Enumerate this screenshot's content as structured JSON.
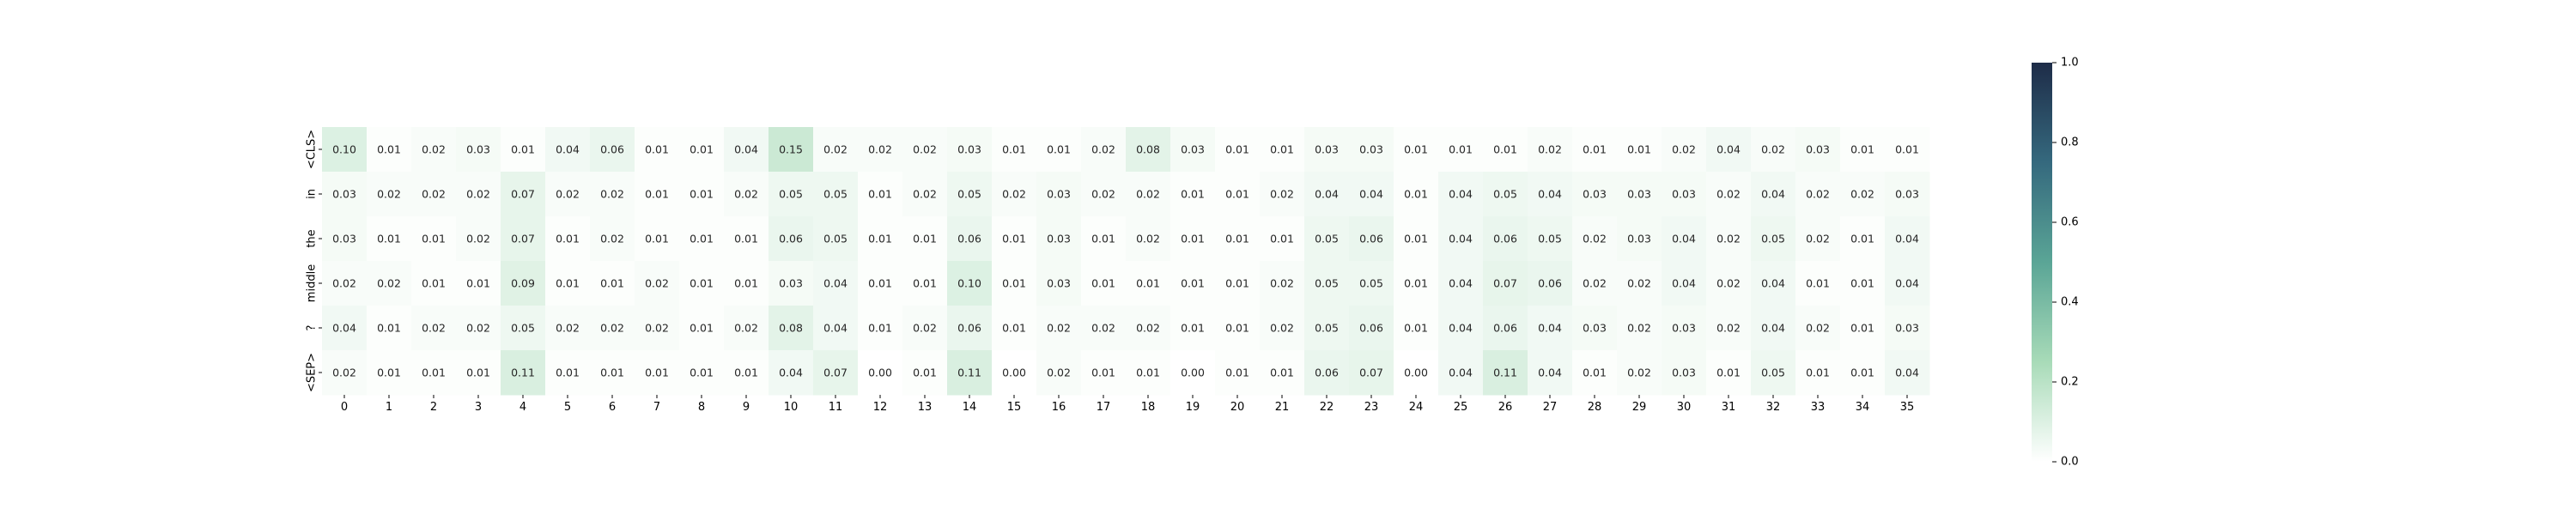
{
  "chart_data": {
    "type": "heatmap",
    "title": "",
    "xlabel": "",
    "ylabel": "",
    "x_ticks": [
      "0",
      "1",
      "2",
      "3",
      "4",
      "5",
      "6",
      "7",
      "8",
      "9",
      "10",
      "11",
      "12",
      "13",
      "14",
      "15",
      "16",
      "17",
      "18",
      "19",
      "20",
      "21",
      "22",
      "23",
      "24",
      "25",
      "26",
      "27",
      "28",
      "29",
      "30",
      "31",
      "32",
      "33",
      "34",
      "35"
    ],
    "y_ticks": [
      "<CLS>",
      "in",
      "the",
      "middle",
      "?",
      "<SEP>"
    ],
    "values": [
      [
        0.1,
        0.01,
        0.02,
        0.03,
        0.01,
        0.04,
        0.06,
        0.01,
        0.01,
        0.04,
        0.15,
        0.02,
        0.02,
        0.02,
        0.03,
        0.01,
        0.01,
        0.02,
        0.08,
        0.03,
        0.01,
        0.01,
        0.03,
        0.03,
        0.01,
        0.01,
        0.01,
        0.02,
        0.01,
        0.01,
        0.02,
        0.04,
        0.02,
        0.03,
        0.01,
        0.01
      ],
      [
        0.03,
        0.02,
        0.02,
        0.02,
        0.07,
        0.02,
        0.02,
        0.01,
        0.01,
        0.02,
        0.05,
        0.05,
        0.01,
        0.02,
        0.05,
        0.02,
        0.03,
        0.02,
        0.02,
        0.01,
        0.01,
        0.02,
        0.04,
        0.04,
        0.01,
        0.04,
        0.05,
        0.04,
        0.03,
        0.03,
        0.03,
        0.02,
        0.04,
        0.02,
        0.02,
        0.03
      ],
      [
        0.03,
        0.01,
        0.01,
        0.02,
        0.07,
        0.01,
        0.02,
        0.01,
        0.01,
        0.01,
        0.06,
        0.05,
        0.01,
        0.01,
        0.06,
        0.01,
        0.03,
        0.01,
        0.02,
        0.01,
        0.01,
        0.01,
        0.05,
        0.06,
        0.01,
        0.04,
        0.06,
        0.05,
        0.02,
        0.03,
        0.04,
        0.02,
        0.05,
        0.02,
        0.01,
        0.04
      ],
      [
        0.02,
        0.02,
        0.01,
        0.01,
        0.09,
        0.01,
        0.01,
        0.02,
        0.01,
        0.01,
        0.03,
        0.04,
        0.01,
        0.01,
        0.1,
        0.01,
        0.03,
        0.01,
        0.01,
        0.01,
        0.01,
        0.02,
        0.05,
        0.05,
        0.01,
        0.04,
        0.07,
        0.06,
        0.02,
        0.02,
        0.04,
        0.02,
        0.04,
        0.01,
        0.01,
        0.04
      ],
      [
        0.04,
        0.01,
        0.02,
        0.02,
        0.05,
        0.02,
        0.02,
        0.02,
        0.01,
        0.02,
        0.08,
        0.04,
        0.01,
        0.02,
        0.06,
        0.01,
        0.02,
        0.02,
        0.02,
        0.01,
        0.01,
        0.02,
        0.05,
        0.06,
        0.01,
        0.04,
        0.06,
        0.04,
        0.03,
        0.02,
        0.03,
        0.02,
        0.04,
        0.02,
        0.01,
        0.03
      ],
      [
        0.02,
        0.01,
        0.01,
        0.01,
        0.11,
        0.01,
        0.01,
        0.01,
        0.01,
        0.01,
        0.04,
        0.07,
        0.0,
        0.01,
        0.11,
        0.0,
        0.02,
        0.01,
        0.01,
        0.0,
        0.01,
        0.01,
        0.06,
        0.07,
        0.0,
        0.04,
        0.11,
        0.04,
        0.01,
        0.02,
        0.03,
        0.01,
        0.05,
        0.01,
        0.01,
        0.04
      ]
    ],
    "color_range": [
      0.0,
      1.0
    ],
    "colorbar_ticks": [
      "0.0",
      "0.2",
      "0.4",
      "0.6",
      "0.8",
      "1.0"
    ],
    "colormap": [
      "#ffffff",
      "#a8dbb8",
      "#5aa596",
      "#35697e",
      "#1e2c48"
    ],
    "grid": false,
    "legend": "colorbar-right"
  }
}
